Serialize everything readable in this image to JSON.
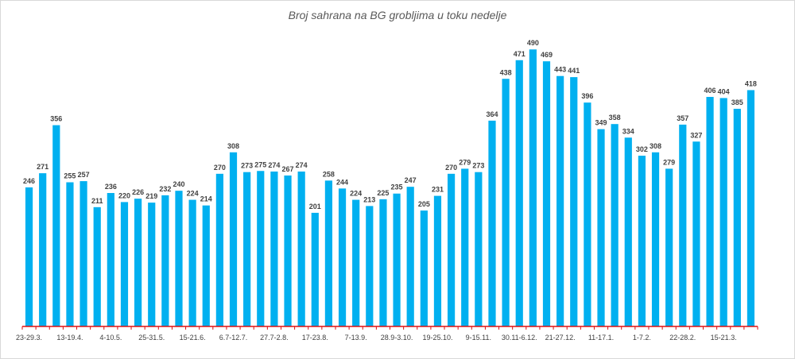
{
  "chart_data": {
    "type": "bar",
    "title": "Broj sahrana na BG grobljima u toku nedelje",
    "xlabel": "",
    "ylabel": "",
    "ylim": [
      0,
      510
    ],
    "grid": false,
    "legend": "none",
    "colors": {
      "bar": "#00b0f0",
      "axis": "#e01010",
      "label": "#404040"
    },
    "values": [
      246,
      271,
      356,
      255,
      257,
      211,
      236,
      220,
      226,
      219,
      232,
      240,
      224,
      214,
      270,
      308,
      273,
      275,
      274,
      267,
      274,
      201,
      258,
      244,
      224,
      213,
      225,
      235,
      247,
      205,
      231,
      270,
      279,
      273,
      364,
      438,
      471,
      490,
      469,
      443,
      441,
      396,
      349,
      358,
      334,
      302,
      308,
      279,
      357,
      327,
      406,
      404,
      385,
      418
    ],
    "categories": [
      "23-29.3.",
      "",
      "",
      "13-19.4.",
      "",
      "",
      "4-10.5.",
      "",
      "",
      "25-31.5.",
      "",
      "",
      "15-21.6.",
      "",
      "",
      "6.7-12.7.",
      "",
      "",
      "27.7-2.8.",
      "",
      "",
      "17-23.8.",
      "",
      "",
      "7-13.9.",
      "",
      "",
      "28.9-3.10.",
      "",
      "",
      "19-25.10.",
      "",
      "",
      "9-15.11.",
      "",
      "",
      "30.11-6.12.",
      "",
      "",
      "21-27.12.",
      "",
      "",
      "11-17.1.",
      "",
      "",
      "1-7.2.",
      "",
      "",
      "22-28.2.",
      "",
      "",
      "15-21.3.",
      "",
      ""
    ]
  }
}
